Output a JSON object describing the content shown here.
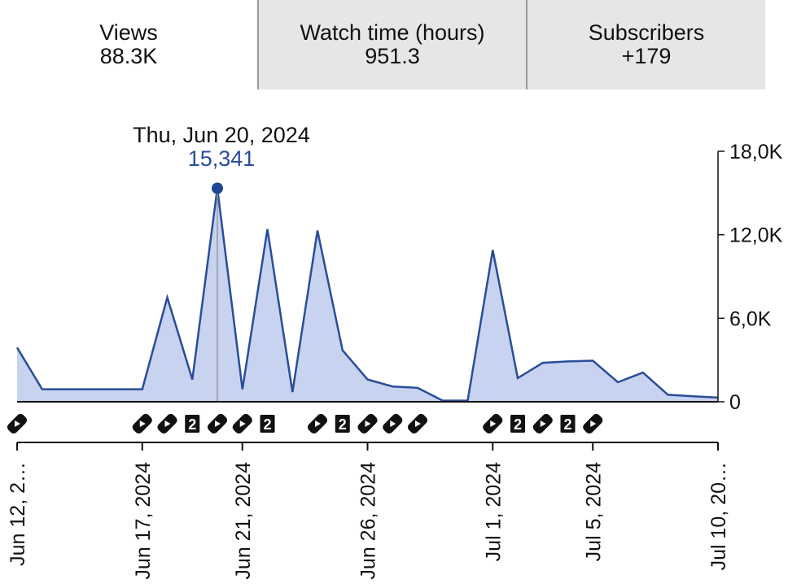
{
  "tabs": [
    {
      "label": "Views",
      "value": "88.3K"
    },
    {
      "label": "Watch time (hours)",
      "value": "951.3"
    },
    {
      "label": "Subscribers",
      "value": "+179"
    }
  ],
  "tooltip": {
    "date": "Thu, Jun 20, 2024",
    "value": "15,341"
  },
  "colors": {
    "line": "#2a4d9a",
    "area": "#c8d3ef",
    "marker": "#1f4597",
    "tab_inactive": "#e6e6e6",
    "axis": "#111111"
  },
  "chart_data": {
    "type": "area",
    "x_label_ticks": [
      "Jun 12, 2…",
      "Jun 17, 2024",
      "Jun 21, 2024",
      "Jun 26, 2024",
      "Jul 1, 2024",
      "Jul 5, 2024",
      "Jul 10, 20…"
    ],
    "y_ticks": [
      "18,0K",
      "12,0K",
      "6,0K",
      "0"
    ],
    "ylim": [
      0,
      18000
    ],
    "x": [
      "2024-06-12",
      "2024-06-13",
      "2024-06-14",
      "2024-06-15",
      "2024-06-16",
      "2024-06-17",
      "2024-06-18",
      "2024-06-19",
      "2024-06-20",
      "2024-06-21",
      "2024-06-22",
      "2024-06-23",
      "2024-06-24",
      "2024-06-25",
      "2024-06-26",
      "2024-06-27",
      "2024-06-28",
      "2024-06-29",
      "2024-06-30",
      "2024-07-01",
      "2024-07-02",
      "2024-07-03",
      "2024-07-04",
      "2024-07-05",
      "2024-07-06",
      "2024-07-07",
      "2024-07-08",
      "2024-07-09",
      "2024-07-10"
    ],
    "series": [
      {
        "values": [
          3900,
          900,
          900,
          900,
          900,
          900,
          7500,
          1600,
          15341,
          900,
          12400,
          700,
          12300,
          3700,
          1600,
          1100,
          1000,
          80,
          80,
          10900,
          1700,
          2800,
          2900,
          2950,
          1400,
          2100,
          500,
          400,
          300
        ]
      }
    ],
    "event_markers": [
      {
        "date": "2024-06-12",
        "icon": "video-icon"
      },
      {
        "date": "2024-06-17",
        "icon": "video-icon"
      },
      {
        "date": "2024-06-18",
        "icon": "video-icon"
      },
      {
        "date": "2024-06-19",
        "icon": "count-badge",
        "count": "2"
      },
      {
        "date": "2024-06-20",
        "icon": "video-icon"
      },
      {
        "date": "2024-06-21",
        "icon": "video-icon"
      },
      {
        "date": "2024-06-22",
        "icon": "count-badge",
        "count": "2"
      },
      {
        "date": "2024-06-24",
        "icon": "video-icon"
      },
      {
        "date": "2024-06-25",
        "icon": "count-badge",
        "count": "2"
      },
      {
        "date": "2024-06-26",
        "icon": "video-icon"
      },
      {
        "date": "2024-06-27",
        "icon": "video-icon"
      },
      {
        "date": "2024-06-28",
        "icon": "video-icon"
      },
      {
        "date": "2024-07-01",
        "icon": "video-icon"
      },
      {
        "date": "2024-07-02",
        "icon": "count-badge",
        "count": "2"
      },
      {
        "date": "2024-07-03",
        "icon": "video-icon"
      },
      {
        "date": "2024-07-04",
        "icon": "count-badge",
        "count": "2"
      },
      {
        "date": "2024-07-05",
        "icon": "video-icon"
      }
    ],
    "grid": false
  }
}
